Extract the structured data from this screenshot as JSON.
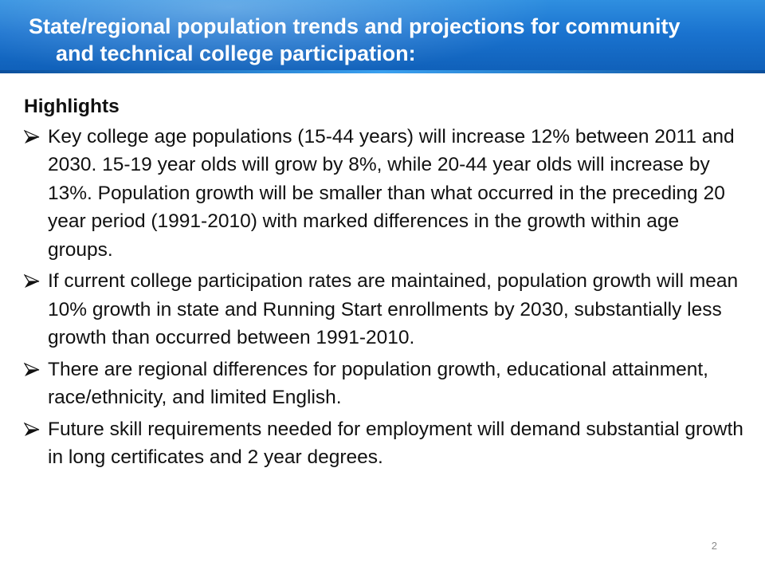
{
  "title": {
    "line1": "State/regional population trends and projections for community",
    "line2": "and technical college participation:"
  },
  "content": {
    "heading": "Highlights",
    "bullets": [
      "Key college age populations  (15-44 years) will increase 12% between 2011 and 2030.  15-19 year olds will grow by 8%, while 20-44 year olds will increase by 13%.  Population growth will be smaller than what occurred in the preceding 20 year period (1991-2010) with marked differences in the growth within age groups.",
      "If current college participation rates are maintained, population growth will mean 10% growth in state and Running Start enrollments by 2030, substantially less growth than occurred between 1991-2010.",
      "There are regional differences for population growth, educational attainment, race/ethnicity, and limited English.",
      "Future skill requirements needed for employment  will demand substantial growth in long certificates and 2 year degrees."
    ],
    "bullet_icon": "arrowhead-bullet-icon"
  },
  "footer": {
    "page_number": "2"
  },
  "colors": {
    "title_bar": "#1a73cf",
    "title_text": "#ffffff",
    "body_text": "#111111"
  }
}
